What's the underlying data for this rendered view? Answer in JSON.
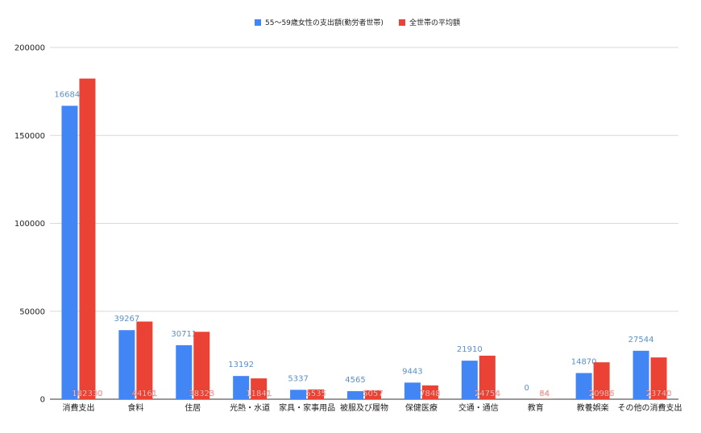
{
  "chart_data": {
    "type": "bar",
    "categories": [
      "消費支出",
      "食料",
      "住居",
      "光熱・水道",
      "家具・家事用品",
      "被服及び履物",
      "保健医療",
      "交通・通信",
      "教育",
      "教養娯楽",
      "その他の消費支出"
    ],
    "series": [
      {
        "name": "55～59歳女性の支出額(勤労者世帯)",
        "color": "#4285f4",
        "label_color": "#5b8fc6",
        "values": [
          166840,
          39267,
          30711,
          13192,
          5337,
          4565,
          9443,
          21910,
          0,
          14870,
          27544
        ]
      },
      {
        "name": "全世帯の平均額",
        "color": "#ea4335",
        "label_color": "#ffffff",
        "values": [
          182330,
          44161,
          38323,
          11841,
          5535,
          5057,
          7848,
          24754,
          84,
          20986,
          23740
        ]
      }
    ],
    "yticks": [
      0,
      50000,
      100000,
      150000,
      200000
    ],
    "ylim": [
      0,
      200000
    ],
    "grid": true,
    "legend_position": "top-center",
    "title": "",
    "xlabel": "",
    "ylabel": ""
  }
}
